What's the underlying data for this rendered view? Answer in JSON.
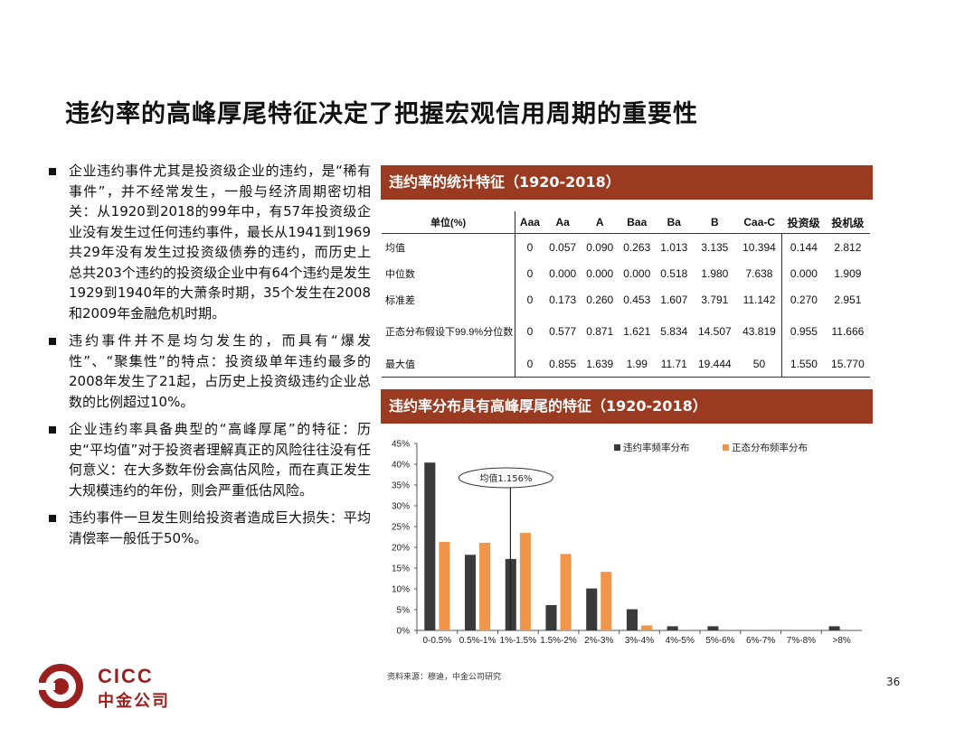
{
  "title": "违约率的高峰厚尾特征决定了把握宏观信用周期的重要性",
  "bullets": [
    "企业违约事件尤其是投资级企业的违约，是“稀有事件”，并不经常发生，一般与经济周期密切相关：从1920到2018的99年中，有57年投资级企业没有发生过任何违约事件，最长从1941到1969共29年没有发生过投资级债券的违约，而历史上总共203个违约的投资级企业中有64个违约是发生1929到1940年的大萧条时期，35个发生在2008和2009年金融危机时期。",
    "违约事件并不是均匀发生的，而具有“爆发性”、“聚集性”的特点：投资级单年违约最多的2008年发生了21起，占历史上投资级违约企业总数的比例超过10%。",
    "企业违约率具备典型的“高峰厚尾”的特征：历史“平均值”对于投资者理解真正的风险往往没有任何意义：在大多数年份会高估风险，而在真正发生大规模违约的年份，则会严重低估风险。",
    "违约事件一旦发生则给投资者造成巨大损失：平均清偿率一般低于50%。"
  ],
  "table_title": "违约率的统计特征（1920-2018）",
  "table": {
    "headers": [
      "单位(%)",
      "Aaa",
      "Aa",
      "A",
      "Baa",
      "Ba",
      "B",
      "Caa-C",
      "投资级",
      "投机级"
    ],
    "rows": [
      [
        "均值",
        "0",
        "0.057",
        "0.090",
        "0.263",
        "1.013",
        "3.135",
        "10.394",
        "0.144",
        "2.812"
      ],
      [
        "中位数",
        "0",
        "0.000",
        "0.000",
        "0.000",
        "0.518",
        "1.980",
        "7.638",
        "0.000",
        "1.909"
      ],
      [
        "标准差",
        "0",
        "0.173",
        "0.260",
        "0.453",
        "1.607",
        "3.791",
        "11.142",
        "0.270",
        "2.951"
      ],
      [
        "正态分布假设下99.9%分位数",
        "0",
        "0.577",
        "0.871",
        "1.621",
        "5.834",
        "14.507",
        "43.819",
        "0.955",
        "11.666"
      ],
      [
        "最大值",
        "0",
        "0.855",
        "1.639",
        "1.99",
        "11.71",
        "19.444",
        "50",
        "1.550",
        "15.770"
      ]
    ]
  },
  "chart_title": "违约率分布具有高峰厚尾的特征（1920-2018）",
  "chart_data": {
    "type": "bar",
    "categories": [
      "0-0.5%",
      "0.5%-1%",
      "1%-1.5%",
      "1.5%-2%",
      "2%-3%",
      "3%-4%",
      "4%-5%",
      "5%-6%",
      "6%-7%",
      "7%-8%",
      ">8%"
    ],
    "series": [
      {
        "name": "违约率频率分布",
        "color": "#3a3a3a",
        "values": [
          40.4,
          18.2,
          17.2,
          6.1,
          10.1,
          5.1,
          1.0,
          1.0,
          0,
          0,
          1.0
        ]
      },
      {
        "name": "正态分布频率分布",
        "color": "#f0954a",
        "values": [
          21.3,
          21.1,
          23.5,
          18.4,
          14.1,
          1.2,
          0,
          0,
          0,
          0,
          0
        ]
      }
    ],
    "ylim": [
      0,
      45
    ],
    "yticks": [
      "0%",
      "5%",
      "10%",
      "15%",
      "20%",
      "25%",
      "30%",
      "35%",
      "40%",
      "45%"
    ],
    "annotation": {
      "text": "均值1.156%",
      "x_value": 1.156
    },
    "grid": false,
    "legend": "top-right"
  },
  "source": "资料来源：穆迪，中金公司研究",
  "page_number": "36",
  "logo": {
    "en": "CICC",
    "cn": "中金公司",
    "color": "#9a1f1f"
  }
}
